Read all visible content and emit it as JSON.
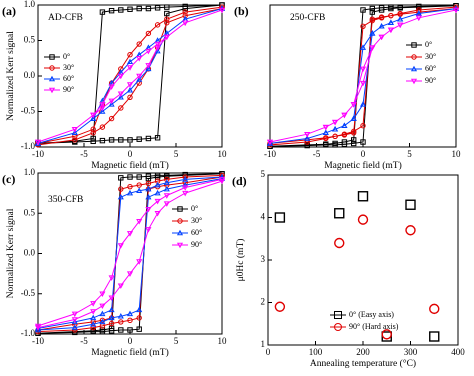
{
  "chart_data": [
    {
      "type": "line",
      "panel_label": "(a)",
      "annotation": "AD-CFB",
      "xlabel": "Magnetic field (mT)",
      "ylabel": "Normalized Kerr signal",
      "legend": "left",
      "xlim": [
        -10,
        10
      ],
      "xticks": [
        -10,
        -5,
        0,
        5,
        10
      ],
      "ylim": [
        -1.0,
        1.0
      ],
      "yticks": [
        {
          "value": -1.0,
          "label": "-1.0"
        },
        {
          "value": -0.5,
          "label": "-0.5"
        },
        {
          "value": 0.0,
          "label": "0.0"
        },
        {
          "value": 0.5,
          "label": "0.5"
        },
        {
          "value": 1.0,
          "label": "1.0"
        }
      ],
      "x": [
        10,
        6,
        4,
        3,
        2,
        1,
        0,
        -1,
        -2,
        -3,
        -4,
        -6,
        -10,
        -10,
        -6,
        -4,
        -3,
        -2,
        -1,
        0,
        1,
        2,
        3,
        4,
        6,
        10
      ],
      "series": [
        {
          "name": "0°",
          "color": "#000000",
          "marker": "square",
          "values": [
            1.0,
            0.98,
            0.97,
            0.96,
            0.95,
            0.95,
            0.94,
            0.93,
            0.92,
            0.9,
            -0.88,
            -0.92,
            -0.95,
            -0.95,
            -0.93,
            -0.92,
            -0.91,
            -0.9,
            -0.9,
            -0.9,
            -0.89,
            -0.88,
            -0.87,
            0.88,
            0.95,
            1.0
          ]
        },
        {
          "name": "30°",
          "color": "#e00000",
          "marker": "circle",
          "values": [
            0.97,
            0.9,
            0.8,
            0.72,
            0.6,
            0.45,
            0.3,
            0.1,
            -0.1,
            -0.4,
            -0.75,
            -0.85,
            -0.95,
            -0.97,
            -0.9,
            -0.8,
            -0.72,
            -0.6,
            -0.45,
            -0.3,
            -0.1,
            0.1,
            0.4,
            0.75,
            0.85,
            0.95
          ]
        },
        {
          "name": "60°",
          "color": "#0040ff",
          "marker": "triangle",
          "values": [
            0.95,
            0.8,
            0.6,
            0.5,
            0.4,
            0.3,
            0.2,
            0.05,
            -0.1,
            -0.35,
            -0.6,
            -0.8,
            -0.95,
            -0.95,
            -0.8,
            -0.6,
            -0.5,
            -0.4,
            -0.3,
            -0.2,
            -0.05,
            0.1,
            0.35,
            0.6,
            0.8,
            0.95
          ]
        },
        {
          "name": "90°",
          "color": "#ff00ff",
          "marker": "down-triangle",
          "values": [
            0.93,
            0.75,
            0.55,
            0.45,
            0.35,
            0.25,
            0.12,
            0.0,
            -0.15,
            -0.4,
            -0.55,
            -0.75,
            -0.93,
            -0.93,
            -0.75,
            -0.55,
            -0.45,
            -0.35,
            -0.25,
            -0.12,
            0.0,
            0.15,
            0.4,
            0.55,
            0.75,
            0.93
          ]
        }
      ]
    },
    {
      "type": "line",
      "panel_label": "(b)",
      "annotation": "250-CFB",
      "xlabel": "Magnetic field (mT)",
      "legend": "right",
      "xlim": [
        -10,
        10
      ],
      "xticks": [
        -10,
        -5,
        0,
        5,
        10
      ],
      "ylim": [
        -1.0,
        1.0
      ],
      "x": [
        10,
        6,
        4,
        3,
        2,
        1,
        0,
        -1,
        -2,
        -3,
        -4,
        -6,
        -10,
        -10,
        -6,
        -4,
        -3,
        -2,
        -1,
        0,
        1,
        2,
        3,
        4,
        6,
        10
      ],
      "series": [
        {
          "name": "0°",
          "color": "#000000",
          "marker": "square",
          "values": [
            0.99,
            0.98,
            0.97,
            0.97,
            0.96,
            0.95,
            0.93,
            -0.9,
            -0.93,
            -0.95,
            -0.96,
            -0.97,
            -0.99,
            -0.99,
            -0.98,
            -0.97,
            -0.97,
            -0.96,
            -0.95,
            -0.93,
            0.9,
            0.93,
            0.95,
            0.96,
            0.97,
            0.99
          ]
        },
        {
          "name": "30°",
          "color": "#e00000",
          "marker": "circle",
          "values": [
            0.97,
            0.93,
            0.88,
            0.85,
            0.82,
            0.78,
            0.7,
            -0.8,
            -0.83,
            -0.85,
            -0.87,
            -0.9,
            -0.95,
            -0.97,
            -0.93,
            -0.88,
            -0.85,
            -0.82,
            -0.78,
            -0.7,
            0.8,
            0.83,
            0.85,
            0.87,
            0.9,
            0.95
          ]
        },
        {
          "name": "60°",
          "color": "#0040ff",
          "marker": "triangle",
          "values": [
            0.95,
            0.88,
            0.8,
            0.75,
            0.7,
            0.6,
            0.4,
            -0.6,
            -0.7,
            -0.75,
            -0.8,
            -0.88,
            -0.95,
            -0.95,
            -0.88,
            -0.8,
            -0.75,
            -0.7,
            -0.6,
            -0.4,
            0.6,
            0.7,
            0.75,
            0.8,
            0.88,
            0.95
          ]
        },
        {
          "name": "90°",
          "color": "#ff00ff",
          "marker": "down-triangle",
          "values": [
            0.93,
            0.82,
            0.72,
            0.65,
            0.55,
            0.4,
            0.1,
            -0.4,
            -0.55,
            -0.65,
            -0.72,
            -0.82,
            -0.93,
            -0.93,
            -0.82,
            -0.72,
            -0.65,
            -0.55,
            -0.4,
            -0.1,
            0.4,
            0.55,
            0.65,
            0.72,
            0.82,
            0.93
          ]
        }
      ]
    },
    {
      "type": "line",
      "panel_label": "(c)",
      "annotation": "350-CFB",
      "xlabel": "Magnetic field (mT)",
      "ylabel": "Normalized Kerr signal",
      "legend": "right",
      "xlim": [
        -10,
        10
      ],
      "xticks": [
        -10,
        -5,
        0,
        5,
        10
      ],
      "ylim": [
        -1.0,
        1.0
      ],
      "yticks": [
        {
          "value": -1.0,
          "label": "-1.0"
        },
        {
          "value": -0.5,
          "label": "-0.5"
        },
        {
          "value": 0.0,
          "label": "0.0"
        },
        {
          "value": 0.5,
          "label": "0.5"
        },
        {
          "value": 1.0,
          "label": "1.0"
        }
      ],
      "x": [
        10,
        6,
        4,
        3,
        2,
        1,
        0,
        -1,
        -2,
        -3,
        -4,
        -6,
        -10,
        -10,
        -6,
        -4,
        -3,
        -2,
        -1,
        0,
        1,
        2,
        3,
        4,
        6,
        10
      ],
      "series": [
        {
          "name": "0°",
          "color": "#000000",
          "marker": "square",
          "values": [
            0.99,
            0.98,
            0.97,
            0.97,
            0.96,
            0.95,
            0.95,
            0.94,
            -0.93,
            -0.95,
            -0.96,
            -0.97,
            -0.99,
            -0.99,
            -0.98,
            -0.97,
            -0.97,
            -0.96,
            -0.95,
            -0.95,
            -0.94,
            0.93,
            0.95,
            0.96,
            0.97,
            0.99
          ]
        },
        {
          "name": "30°",
          "color": "#e00000",
          "marker": "circle",
          "values": [
            0.97,
            0.95,
            0.92,
            0.9,
            0.87,
            0.85,
            0.83,
            0.8,
            -0.8,
            -0.83,
            -0.85,
            -0.88,
            -0.95,
            -0.97,
            -0.95,
            -0.92,
            -0.9,
            -0.87,
            -0.85,
            -0.83,
            -0.8,
            0.8,
            0.83,
            0.85,
            0.88,
            0.95
          ]
        },
        {
          "name": "60°",
          "color": "#0040ff",
          "marker": "triangle",
          "values": [
            0.95,
            0.92,
            0.88,
            0.85,
            0.8,
            0.78,
            0.75,
            0.7,
            -0.7,
            -0.75,
            -0.8,
            -0.85,
            -0.93,
            -0.95,
            -0.92,
            -0.88,
            -0.85,
            -0.8,
            -0.78,
            -0.75,
            -0.7,
            0.7,
            0.75,
            0.8,
            0.85,
            0.93
          ]
        },
        {
          "name": "90°",
          "color": "#ff00ff",
          "marker": "down-triangle",
          "values": [
            0.92,
            0.82,
            0.72,
            0.65,
            0.55,
            0.4,
            0.25,
            0.1,
            -0.3,
            -0.5,
            -0.62,
            -0.75,
            -0.9,
            -0.92,
            -0.82,
            -0.72,
            -0.65,
            -0.55,
            -0.4,
            -0.25,
            -0.1,
            0.3,
            0.5,
            0.62,
            0.75,
            0.9
          ]
        }
      ]
    },
    {
      "type": "scatter",
      "panel_label": "(d)",
      "xlabel": "Annealing temperature (°C)",
      "ylabel": "μ0Hc (mT)",
      "legend": "bottom",
      "xlim": [
        0,
        400
      ],
      "xticks": [
        0,
        100,
        200,
        300,
        400
      ],
      "ylim": [
        1,
        5
      ],
      "yticks": [
        1,
        2,
        3,
        4,
        5
      ],
      "x": [
        25,
        150,
        200,
        250,
        300,
        350
      ],
      "series": [
        {
          "name": "0° (Easy axis)",
          "color": "#000000",
          "marker": "square",
          "values": [
            4.0,
            4.1,
            4.5,
            1.2,
            4.3,
            1.2
          ]
        },
        {
          "name": "90° (Hard axis)",
          "color": "#e00000",
          "marker": "circle",
          "values": [
            1.9,
            3.4,
            3.95,
            1.25,
            3.7,
            1.85
          ]
        }
      ]
    }
  ]
}
